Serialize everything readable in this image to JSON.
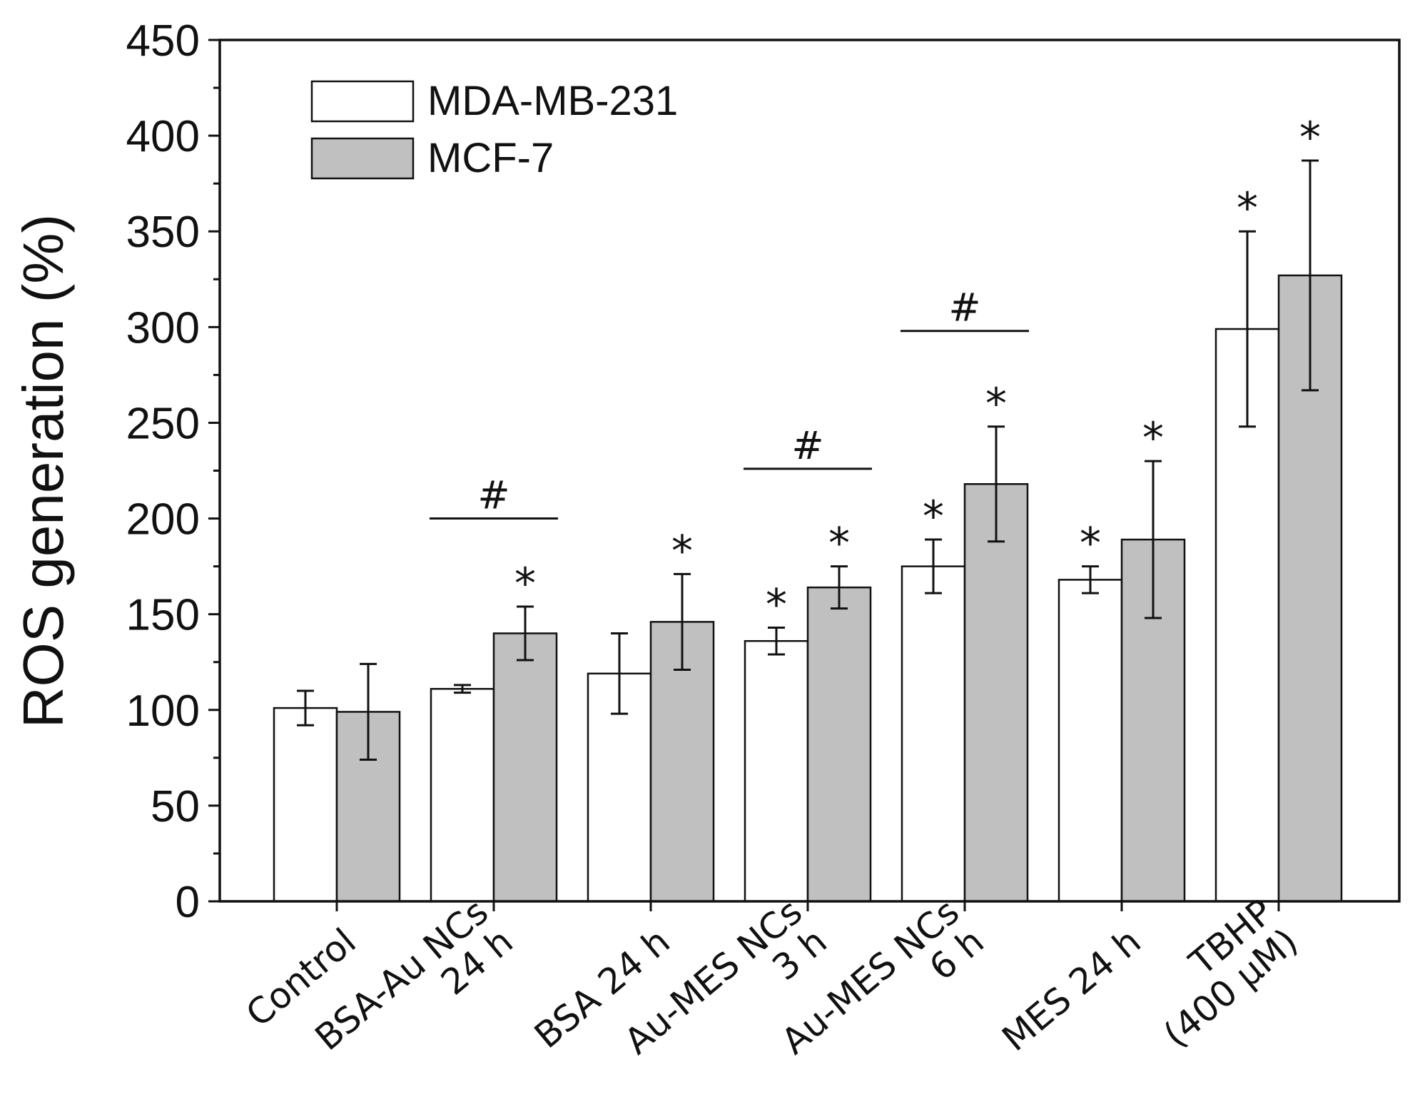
{
  "chart_data": {
    "type": "bar",
    "ylabel": "ROS generation (%)",
    "xlabel": "",
    "ylim": [
      0,
      450
    ],
    "yticks": [
      0,
      50,
      100,
      150,
      200,
      250,
      300,
      350,
      400,
      450
    ],
    "legend_position": "top-left",
    "categories": [
      [
        "Control"
      ],
      [
        "BSA-Au NCs",
        "24 h"
      ],
      [
        "BSA 24 h"
      ],
      [
        "Au-MES NCs",
        "3 h"
      ],
      [
        "Au-MES NCs",
        "6 h"
      ],
      [
        "MES 24 h"
      ],
      [
        "TBHP",
        "(400 μM)"
      ]
    ],
    "series": [
      {
        "name": "MDA-MB-231",
        "color": "#ffffff",
        "values": [
          101,
          111,
          119,
          136,
          175,
          168,
          299
        ],
        "errors": [
          9,
          2,
          21,
          7,
          14,
          7,
          51
        ],
        "significance": [
          "",
          "",
          "",
          "*",
          "*",
          "*",
          "*"
        ]
      },
      {
        "name": "MCF-7",
        "color": "#c0c0c0",
        "values": [
          99,
          140,
          146,
          164,
          218,
          189,
          327
        ],
        "errors": [
          25,
          14,
          25,
          11,
          30,
          41,
          60
        ],
        "significance": [
          "",
          "*",
          "*",
          "*",
          "*",
          "*",
          "*"
        ]
      }
    ],
    "group_annotations": [
      {
        "category_index": 1,
        "symbol": "#",
        "y": 200
      },
      {
        "category_index": 3,
        "symbol": "#",
        "y": 226
      },
      {
        "category_index": 4,
        "symbol": "#",
        "y": 298
      }
    ]
  }
}
